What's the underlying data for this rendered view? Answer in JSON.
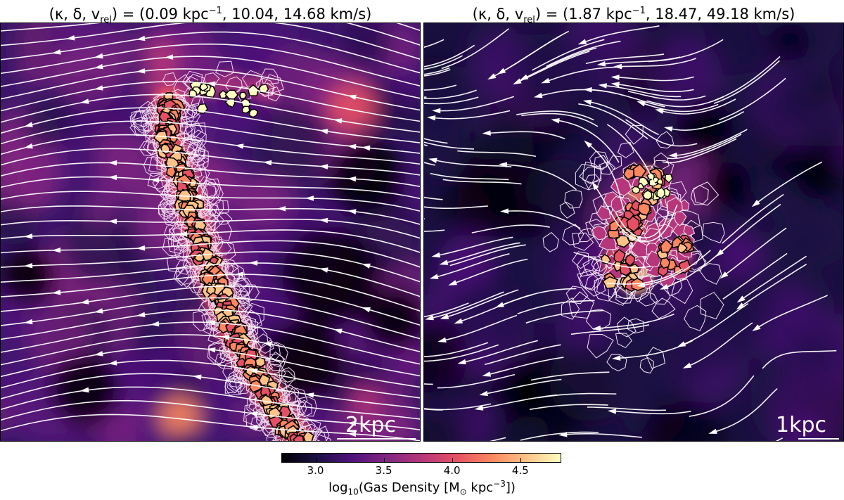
{
  "chart_data": [
    {
      "type": "heatmap",
      "title_kappa": "0.09",
      "title_delta": "10.04",
      "title_vrel": "14.68",
      "scale_bar": "2kpc"
    },
    {
      "type": "heatmap",
      "title_kappa": "1.87",
      "title_delta": "18.47",
      "title_vrel": "49.18",
      "scale_bar": "1kpc"
    }
  ],
  "colorbar": {
    "ticks": [
      3.0,
      3.5,
      4.0,
      4.5
    ],
    "tick_labels": [
      "3.0",
      "3.5",
      "4.0",
      "4.5"
    ],
    "range": [
      2.75,
      4.8
    ],
    "label_prefix": "log",
    "label_sub": "10",
    "label_main": "(Gas Density [M",
    "label_sun": "⊙",
    "label_unit": " kpc",
    "label_exp": "−3",
    "label_end": "])",
    "colormap": "magma",
    "colors": [
      "#000004",
      "#1c1044",
      "#4f127b",
      "#812581",
      "#b5367a",
      "#e55064",
      "#fb8761",
      "#fec287",
      "#fcfdbf"
    ]
  },
  "title_text": {
    "prefix": "(κ, δ, v",
    "rel": "rel",
    "eq": ") = (",
    "kpc": " kpc",
    "inv": "−1",
    "sep": ", ",
    "kms": " km/s)"
  }
}
